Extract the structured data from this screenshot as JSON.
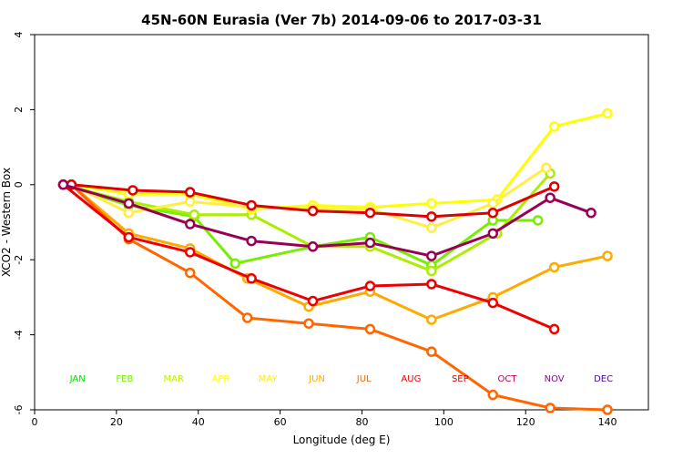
{
  "chart_data": {
    "type": "line",
    "title": "45N-60N Eurasia (Ver 7b)   2014-09-06 to 2017-03-31",
    "xlabel": "Longitude (deg E)",
    "ylabel": "XCO2 - Western Box",
    "xlim": [
      0,
      150
    ],
    "ylim": [
      -6,
      4
    ],
    "xticks": [
      0,
      20,
      40,
      60,
      80,
      100,
      120,
      140
    ],
    "yticks": [
      -6,
      -4,
      -2,
      0,
      2,
      4
    ],
    "xtick_labels": [
      "0",
      "20",
      "40",
      "60",
      "80",
      "100",
      "120",
      "140"
    ],
    "ytick_labels": [
      "-6",
      "-4",
      "-2",
      "0",
      "2",
      "4"
    ],
    "grid": false,
    "month_labels": [
      {
        "label": "JAN",
        "color": "#00dd00",
        "x": 10.5
      },
      {
        "label": "FEB",
        "color": "#77ee00",
        "x": 22
      },
      {
        "label": "MAR",
        "color": "#bbee00",
        "x": 34
      },
      {
        "label": "APR",
        "color": "#ffff00",
        "x": 45.5
      },
      {
        "label": "MAY",
        "color": "#ffee00",
        "x": 57
      },
      {
        "label": "JUN",
        "color": "#ffaa00",
        "x": 69
      },
      {
        "label": "JUL",
        "color": "#ff6600",
        "x": 80.5
      },
      {
        "label": "AUG",
        "color": "#ee0000",
        "x": 92
      },
      {
        "label": "SEP",
        "color": "#dd0000",
        "x": 104
      },
      {
        "label": "OCT",
        "color": "#bb0055",
        "x": 115.5
      },
      {
        "label": "NOV",
        "color": "#990099",
        "x": 127
      },
      {
        "label": "DEC",
        "color": "#5500aa",
        "x": 139
      }
    ],
    "month_labels_y": -5.15,
    "series": [
      {
        "name": "FEB",
        "color": "#77ee00",
        "x": [
          7,
          23,
          39,
          49,
          68,
          82,
          97,
          112,
          123
        ],
        "y": [
          0,
          -0.55,
          -0.85,
          -2.1,
          -1.65,
          -1.4,
          -2.15,
          -0.95,
          -0.95
        ]
      },
      {
        "name": "MAR",
        "color": "#aaee00",
        "x": [
          7,
          23,
          39,
          53,
          68,
          82,
          97,
          113,
          126
        ],
        "y": [
          0,
          -0.45,
          -0.8,
          -0.8,
          -1.65,
          -1.65,
          -2.3,
          -1.3,
          0.3
        ]
      },
      {
        "name": "APR",
        "color": "#ffff00",
        "x": [
          9,
          23,
          38,
          53,
          68,
          82,
          97,
          113,
          127,
          140
        ],
        "y": [
          0,
          -0.25,
          -0.25,
          -0.65,
          -0.55,
          -0.6,
          -0.5,
          -0.4,
          1.55,
          1.9
        ]
      },
      {
        "name": "MAY",
        "color": "#ffee44",
        "x": [
          9,
          23,
          38,
          53,
          68,
          82,
          97,
          112,
          125
        ],
        "y": [
          0,
          -0.75,
          -0.45,
          -0.6,
          -0.65,
          -0.65,
          -1.15,
          -0.5,
          0.45
        ]
      },
      {
        "name": "JUN",
        "color": "#ffaa00",
        "x": [
          9,
          23,
          38,
          52,
          67,
          82,
          97,
          112,
          127,
          140
        ],
        "y": [
          0,
          -1.3,
          -1.7,
          -2.5,
          -3.25,
          -2.85,
          -3.6,
          -3.0,
          -2.2,
          -1.9
        ]
      },
      {
        "name": "JUL",
        "color": "#ff6600",
        "x": [
          9,
          23,
          38,
          52,
          67,
          82,
          97,
          112,
          126,
          140
        ],
        "y": [
          0,
          -1.45,
          -2.35,
          -3.55,
          -3.7,
          -3.85,
          -4.45,
          -5.6,
          -5.95,
          -6.0
        ]
      },
      {
        "name": "AUG",
        "color": "#ee0000",
        "x": [
          7,
          23,
          38,
          53,
          68,
          82,
          97,
          112,
          127
        ],
        "y": [
          0,
          -1.4,
          -1.8,
          -2.5,
          -3.1,
          -2.7,
          -2.65,
          -3.15,
          -3.85
        ]
      },
      {
        "name": "SEP",
        "color": "#dd0000",
        "x": [
          9,
          24,
          38,
          53,
          68,
          82,
          97,
          112,
          127
        ],
        "y": [
          0,
          -0.15,
          -0.2,
          -0.55,
          -0.7,
          -0.75,
          -0.85,
          -0.75,
          -0.05
        ]
      },
      {
        "name": "NOV",
        "color": "#990055",
        "x": [
          7,
          23,
          38,
          53,
          68,
          82,
          97,
          112,
          126,
          136
        ],
        "y": [
          0,
          -0.5,
          -1.05,
          -1.5,
          -1.65,
          -1.55,
          -1.9,
          -1.3,
          -0.35,
          -0.75
        ]
      }
    ]
  }
}
